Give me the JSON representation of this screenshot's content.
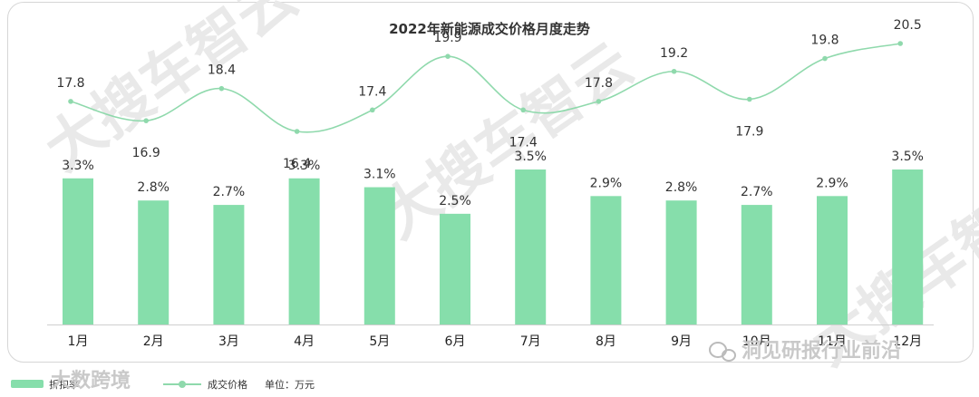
{
  "chart_data": {
    "type": "bar+line",
    "title": "2022年新能源成交价格月度走势",
    "categories": [
      "1月",
      "2月",
      "3月",
      "4月",
      "5月",
      "6月",
      "7月",
      "8月",
      "9月",
      "10月",
      "11月",
      "12月"
    ],
    "series": [
      {
        "name": "折扣率",
        "type": "bar",
        "values": [
          3.3,
          2.8,
          2.7,
          3.3,
          3.1,
          2.5,
          3.5,
          2.9,
          2.8,
          2.7,
          2.9,
          3.5
        ],
        "labels": [
          "3.3%",
          "2.8%",
          "2.7%",
          "3.3%",
          "3.1%",
          "2.5%",
          "3.5%",
          "2.9%",
          "2.8%",
          "2.7%",
          "2.9%",
          "3.5%"
        ]
      },
      {
        "name": "成交价格",
        "type": "line",
        "values": [
          17.8,
          16.9,
          18.4,
          16.4,
          17.4,
          19.9,
          17.4,
          17.8,
          19.2,
          17.9,
          19.8,
          20.5
        ],
        "labels": [
          "17.8",
          "16.9",
          "18.4",
          "16.4",
          "17.4",
          "19.9",
          "17.4",
          "17.8",
          "19.2",
          "17.9",
          "19.8",
          "20.5"
        ]
      }
    ],
    "unit_note": "单位：万元",
    "grid": false,
    "legend": "bottom-left"
  },
  "watermarks": {
    "main": "大搜车智云",
    "bottom_left": "大数跨境",
    "bottom_right": "洞见研报行业前沿"
  },
  "colors": {
    "bar": "#86deab",
    "line": "#8fd9ac",
    "text": "#333333",
    "frame": "#d6d6d6"
  }
}
